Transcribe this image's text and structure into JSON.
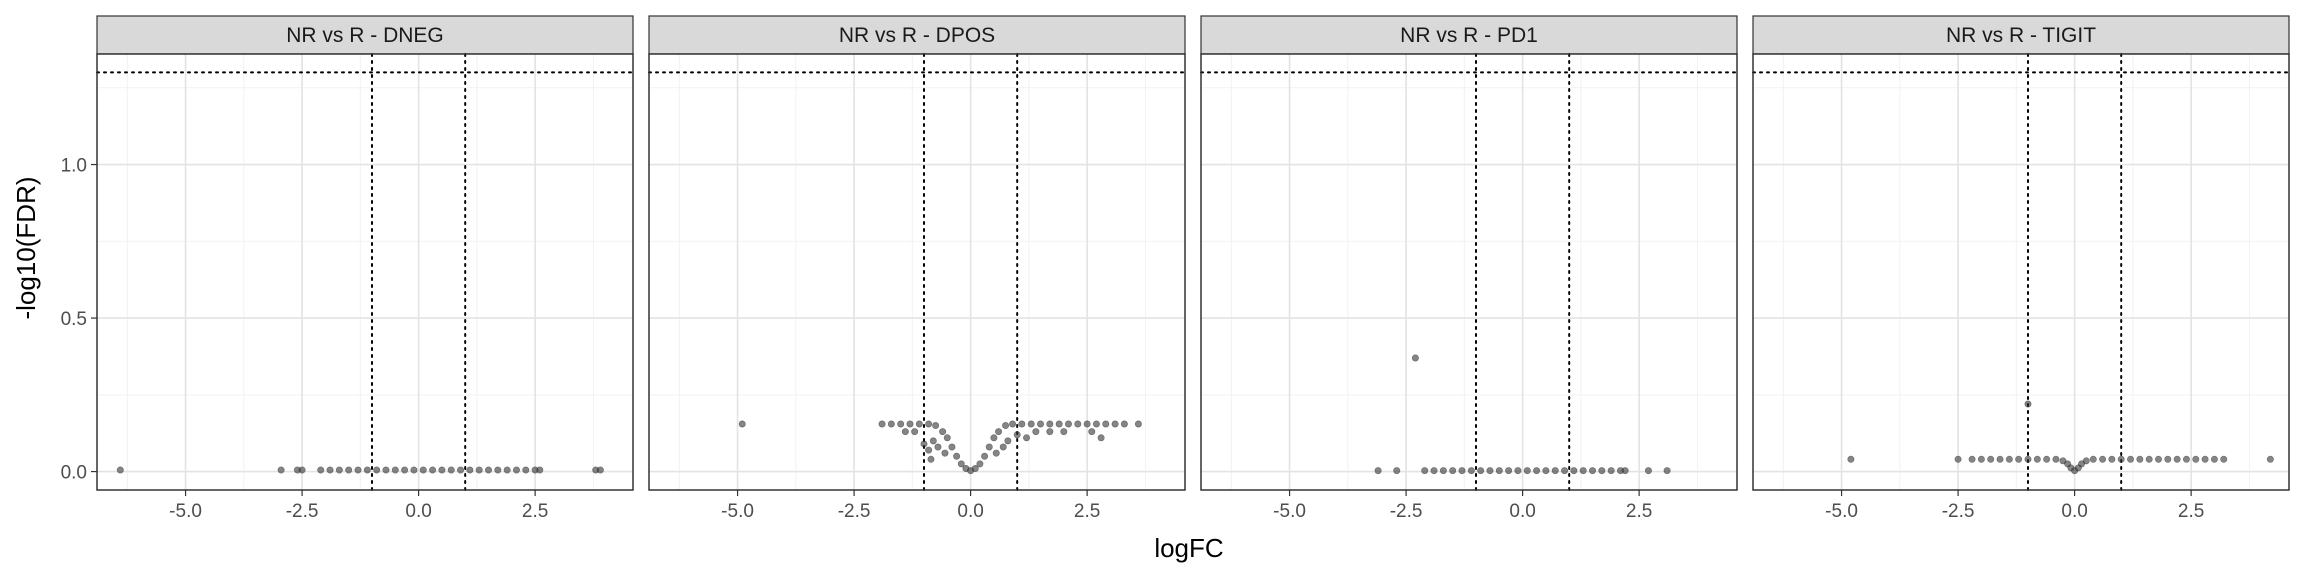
{
  "chart_data": {
    "type": "scatter",
    "xlabel": "logFC",
    "ylabel": "-log10(FDR)",
    "xlim": [
      -6.9,
      4.6
    ],
    "ylim": [
      -0.06,
      1.36
    ],
    "x_ticks": [
      -5.0,
      -2.5,
      0.0,
      2.5
    ],
    "x_tick_labels": [
      "-5.0",
      "-2.5",
      "0.0",
      "2.5"
    ],
    "y_ticks": [
      0.0,
      0.5,
      1.0
    ],
    "y_tick_labels": [
      "0.0",
      "0.5",
      "1.0"
    ],
    "vlines": [
      -1,
      1
    ],
    "hline": 1.3,
    "grid": true,
    "point_color": "#333333",
    "panels": [
      {
        "title": "NR vs R - DNEG",
        "points": [
          [
            -6.4,
            0.005
          ],
          [
            -2.95,
            0.005
          ],
          [
            -2.6,
            0.005
          ],
          [
            -2.5,
            0.005
          ],
          [
            -2.1,
            0.005
          ],
          [
            -1.9,
            0.005
          ],
          [
            -1.7,
            0.005
          ],
          [
            -1.5,
            0.005
          ],
          [
            -1.3,
            0.005
          ],
          [
            -1.1,
            0.005
          ],
          [
            -0.9,
            0.005
          ],
          [
            -0.7,
            0.005
          ],
          [
            -0.5,
            0.005
          ],
          [
            -0.3,
            0.005
          ],
          [
            -0.1,
            0.005
          ],
          [
            0.1,
            0.005
          ],
          [
            0.3,
            0.005
          ],
          [
            0.5,
            0.005
          ],
          [
            0.7,
            0.005
          ],
          [
            0.9,
            0.005
          ],
          [
            1.1,
            0.005
          ],
          [
            1.3,
            0.005
          ],
          [
            1.5,
            0.005
          ],
          [
            1.7,
            0.005
          ],
          [
            1.9,
            0.005
          ],
          [
            2.1,
            0.005
          ],
          [
            2.3,
            0.005
          ],
          [
            2.5,
            0.005
          ],
          [
            2.6,
            0.005
          ],
          [
            3.8,
            0.005
          ],
          [
            3.9,
            0.005
          ]
        ]
      },
      {
        "title": "NR vs R - DPOS",
        "points": [
          [
            -4.9,
            0.155
          ],
          [
            -1.9,
            0.155
          ],
          [
            -1.7,
            0.155
          ],
          [
            -1.5,
            0.155
          ],
          [
            -1.3,
            0.155
          ],
          [
            -1.1,
            0.155
          ],
          [
            -0.9,
            0.155
          ],
          [
            -0.75,
            0.15
          ],
          [
            -0.6,
            0.13
          ],
          [
            -0.5,
            0.11
          ],
          [
            -0.4,
            0.08
          ],
          [
            -0.3,
            0.05
          ],
          [
            -0.2,
            0.025
          ],
          [
            -0.1,
            0.01
          ],
          [
            0.0,
            0.003
          ],
          [
            0.1,
            0.01
          ],
          [
            0.2,
            0.025
          ],
          [
            0.3,
            0.05
          ],
          [
            0.4,
            0.08
          ],
          [
            0.5,
            0.11
          ],
          [
            0.6,
            0.13
          ],
          [
            0.75,
            0.15
          ],
          [
            0.9,
            0.155
          ],
          [
            1.1,
            0.155
          ],
          [
            1.3,
            0.155
          ],
          [
            1.5,
            0.155
          ],
          [
            1.7,
            0.155
          ],
          [
            1.9,
            0.155
          ],
          [
            2.1,
            0.155
          ],
          [
            2.3,
            0.155
          ],
          [
            2.5,
            0.155
          ],
          [
            2.7,
            0.155
          ],
          [
            2.9,
            0.155
          ],
          [
            3.1,
            0.155
          ],
          [
            3.3,
            0.155
          ],
          [
            3.6,
            0.155
          ],
          [
            -0.8,
            0.1
          ],
          [
            -0.7,
            0.08
          ],
          [
            -0.55,
            0.06
          ],
          [
            0.55,
            0.06
          ],
          [
            0.7,
            0.08
          ],
          [
            0.8,
            0.1
          ],
          [
            1.0,
            0.12
          ],
          [
            1.2,
            0.11
          ],
          [
            1.4,
            0.13
          ],
          [
            1.7,
            0.13
          ],
          [
            2.0,
            0.13
          ],
          [
            2.6,
            0.13
          ],
          [
            2.8,
            0.11
          ],
          [
            -1.2,
            0.13
          ],
          [
            -1.4,
            0.13
          ],
          [
            -1.0,
            0.09
          ],
          [
            -0.9,
            0.07
          ],
          [
            -0.85,
            0.04
          ]
        ]
      },
      {
        "title": "NR vs R - PD1",
        "points": [
          [
            -2.3,
            0.37
          ],
          [
            -3.1,
            0.003
          ],
          [
            -2.7,
            0.003
          ],
          [
            -2.1,
            0.003
          ],
          [
            -1.9,
            0.003
          ],
          [
            -1.7,
            0.003
          ],
          [
            -1.5,
            0.003
          ],
          [
            -1.3,
            0.003
          ],
          [
            -1.1,
            0.003
          ],
          [
            -0.9,
            0.003
          ],
          [
            -0.7,
            0.003
          ],
          [
            -0.5,
            0.003
          ],
          [
            -0.3,
            0.003
          ],
          [
            -0.1,
            0.003
          ],
          [
            0.1,
            0.003
          ],
          [
            0.3,
            0.003
          ],
          [
            0.5,
            0.003
          ],
          [
            0.7,
            0.003
          ],
          [
            0.9,
            0.003
          ],
          [
            1.1,
            0.003
          ],
          [
            1.3,
            0.003
          ],
          [
            1.5,
            0.003
          ],
          [
            1.7,
            0.003
          ],
          [
            1.9,
            0.003
          ],
          [
            2.1,
            0.003
          ],
          [
            2.2,
            0.003
          ],
          [
            2.7,
            0.003
          ],
          [
            3.1,
            0.003
          ]
        ]
      },
      {
        "title": "NR vs R - TIGIT",
        "points": [
          [
            -4.8,
            0.04
          ],
          [
            -2.5,
            0.04
          ],
          [
            -2.2,
            0.04
          ],
          [
            -2.0,
            0.04
          ],
          [
            -1.8,
            0.04
          ],
          [
            -1.6,
            0.04
          ],
          [
            -1.4,
            0.04
          ],
          [
            -1.2,
            0.04
          ],
          [
            -1.0,
            0.04
          ],
          [
            -1.0,
            0.22
          ],
          [
            -0.8,
            0.04
          ],
          [
            -0.6,
            0.04
          ],
          [
            -0.4,
            0.04
          ],
          [
            -0.25,
            0.035
          ],
          [
            -0.15,
            0.025
          ],
          [
            -0.08,
            0.012
          ],
          [
            0.0,
            0.003
          ],
          [
            0.08,
            0.012
          ],
          [
            0.15,
            0.025
          ],
          [
            0.25,
            0.035
          ],
          [
            0.4,
            0.04
          ],
          [
            0.6,
            0.04
          ],
          [
            0.8,
            0.04
          ],
          [
            1.0,
            0.04
          ],
          [
            1.2,
            0.04
          ],
          [
            1.4,
            0.04
          ],
          [
            1.6,
            0.04
          ],
          [
            1.8,
            0.04
          ],
          [
            2.0,
            0.04
          ],
          [
            2.2,
            0.04
          ],
          [
            2.4,
            0.04
          ],
          [
            2.6,
            0.04
          ],
          [
            2.8,
            0.04
          ],
          [
            3.0,
            0.04
          ],
          [
            3.2,
            0.04
          ],
          [
            4.2,
            0.04
          ]
        ]
      }
    ]
  }
}
